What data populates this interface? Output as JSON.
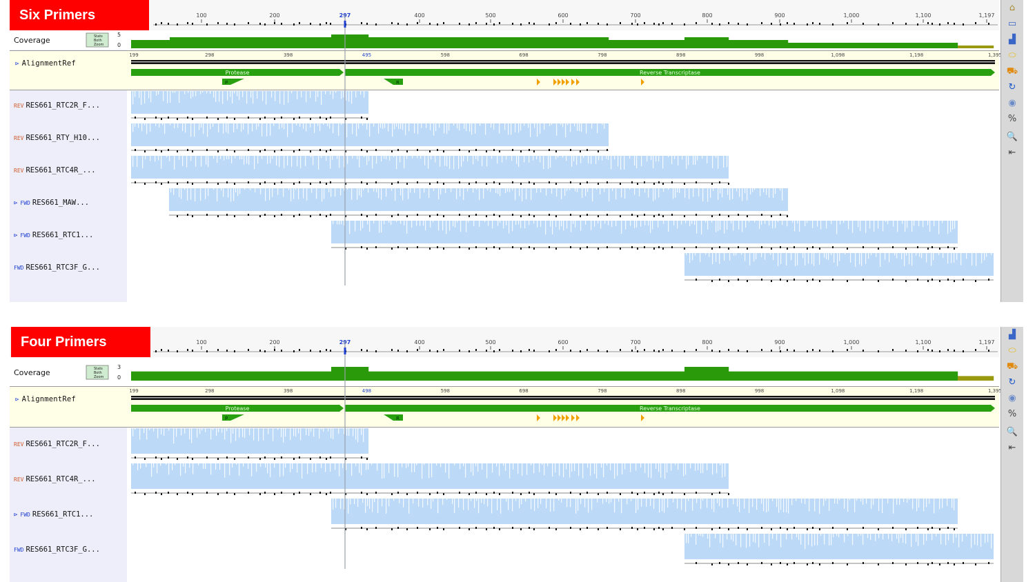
{
  "colors": {
    "badge": "#ff0000",
    "coverage_high": "#2a9a0a",
    "coverage_low": "#9a9a10",
    "read_fill": "#bcd9f8",
    "annotation_green": "#28a010",
    "feature_orange": "#f0a000",
    "cursor_line": "#9aa0aa"
  },
  "panels": [
    {
      "title": "Six Primers",
      "ruler": {
        "ticks": [
          "100",
          "200",
          "297",
          "400",
          "500",
          "600",
          "700",
          "800",
          "900",
          "1,000",
          "1,100",
          "1,197"
        ],
        "cursor_label": "297"
      },
      "coverage": {
        "label": "Coverage",
        "ctrl_labels": [
          "Stats",
          "Both",
          "Zoom"
        ],
        "scale_max": "5",
        "scale_min": "0"
      },
      "reference": {
        "name": "AlignmentRef",
        "ticks": [
          "199",
          "298",
          "398",
          "495",
          "598",
          "698",
          "798",
          "898",
          "998",
          "1,098",
          "1,198",
          "1,395"
        ],
        "cursor_label": "495",
        "annotations": [
          {
            "label": "Protease",
            "start": 190,
            "end": 498
          },
          {
            "label": "Reverse Transcriptase",
            "start": 500,
            "end": 1442
          }
        ],
        "small_labels": [
          "P",
          "R"
        ]
      },
      "reads": [
        {
          "dir": "REV",
          "name": "RES661_RTC2R_F...",
          "start": 190,
          "end": 534
        },
        {
          "dir": "REV",
          "name": "RES661_RTY_H10...",
          "start": 190,
          "end": 882
        },
        {
          "dir": "REV",
          "name": "RES661_RTC4R_...",
          "start": 190,
          "end": 1056
        },
        {
          "dir": "FWD",
          "name": "RES661_MAW...",
          "start": 245,
          "end": 1142
        },
        {
          "dir": "FWD",
          "name": "RES661_RTC1...",
          "start": 480,
          "end": 1388
        },
        {
          "dir": "FWD",
          "name": "RES661_RTC3F_G...",
          "start": 992,
          "end": 1440
        }
      ]
    },
    {
      "title": "Four Primers",
      "ruler": {
        "ticks": [
          "100",
          "200",
          "297",
          "400",
          "500",
          "600",
          "700",
          "800",
          "900",
          "1,000",
          "1,100",
          "1,197"
        ],
        "cursor_label": "297"
      },
      "coverage": {
        "label": "Coverage",
        "ctrl_labels": [
          "Stats",
          "Both",
          "Zoom"
        ],
        "scale_max": "3",
        "scale_min": "0"
      },
      "reference": {
        "name": "AlignmentRef",
        "ticks": [
          "199",
          "298",
          "398",
          "498",
          "598",
          "698",
          "798",
          "898",
          "998",
          "1,098",
          "1,198",
          "1,395"
        ],
        "cursor_label": "498",
        "annotations": [
          {
            "label": "Protease",
            "start": 190,
            "end": 498
          },
          {
            "label": "Reverse Transcriptase",
            "start": 500,
            "end": 1442
          }
        ],
        "small_labels": [
          "P",
          "R"
        ]
      },
      "reads": [
        {
          "dir": "REV",
          "name": "RES661_RTC2R_F...",
          "start": 190,
          "end": 534
        },
        {
          "dir": "REV",
          "name": "RES661_RTC4R_...",
          "start": 190,
          "end": 1056
        },
        {
          "dir": "FWD",
          "name": "RES661_RTC1...",
          "start": 480,
          "end": 1388
        },
        {
          "dir": "FWD",
          "name": "RES661_RTC3F_G...",
          "start": 992,
          "end": 1440
        }
      ]
    }
  ],
  "toolbar": {
    "icons": [
      "home-icon",
      "window-icon",
      "chart-icon",
      "lozenge-icon",
      "truck-icon",
      "refresh-icon",
      "bubble-icon",
      "percent-icon",
      "zoom-icon",
      "collapse-icon"
    ],
    "glyphs": [
      "⌂",
      "▭",
      "▟",
      "⬭",
      "⛟",
      "↻",
      "◉",
      "%",
      "🔍",
      "⇤"
    ]
  }
}
